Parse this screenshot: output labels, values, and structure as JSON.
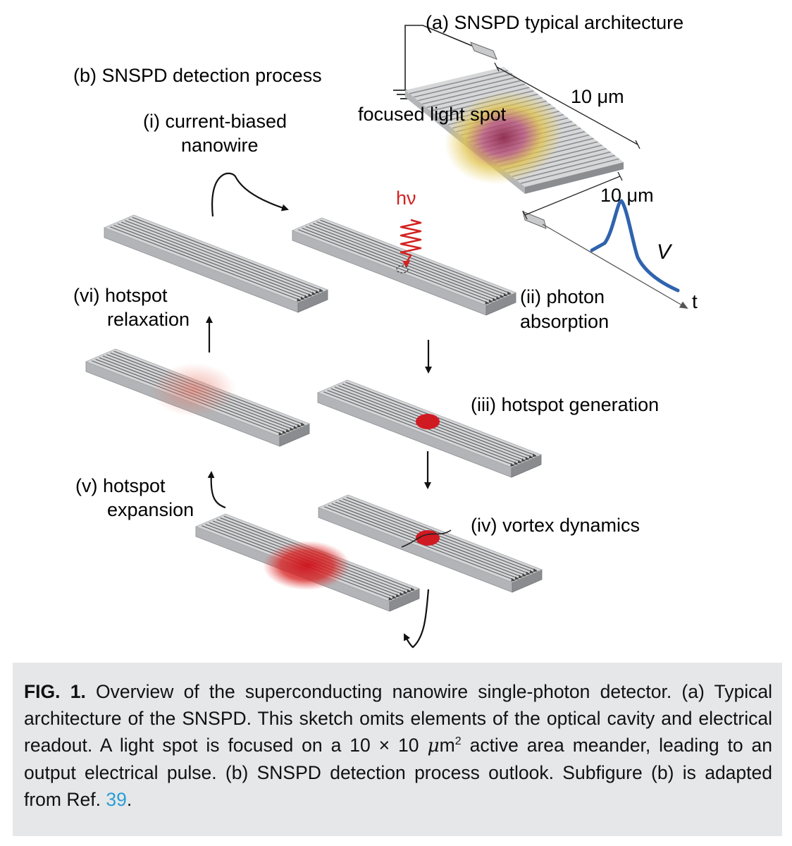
{
  "figure": {
    "label_a": "(a) SNSPD typical architecture",
    "label_b": "(b) SNSPD detection process",
    "light_spot": "focused light spot",
    "dim_width": "10 μm",
    "dim_height": "10 μm",
    "photon": "hν",
    "voltage": "V",
    "time": "t",
    "steps": {
      "i_line1": "(i) current-biased",
      "i_line2": "nanowire",
      "ii_line1": "(ii) photon",
      "ii_line2": "absorption",
      "iii": "(iii) hotspot generation",
      "iv": "(iv) vortex dynamics",
      "v_line1": "(v) hotspot",
      "v_line2": "expansion",
      "vi_line1": "(vi) hotspot",
      "vi_line2": "relaxation"
    }
  },
  "caption": {
    "fig_label": "FIG. 1.",
    "part1": " Overview of the superconducting nanowire single-photon detector. (a) Typical architecture of the SNSPD. This sketch omits elements of the optical cavity and electrical readout. A light spot is focused on a 10 × 10 ",
    "mu": "μ",
    "unit": "m",
    "sup": "2",
    "part2": " active area meander, leading to an output electrical pulse. (b) SNSPD detection process outlook. Subfigure (b) is adapted from Ref. ",
    "ref": "39",
    "end": "."
  }
}
